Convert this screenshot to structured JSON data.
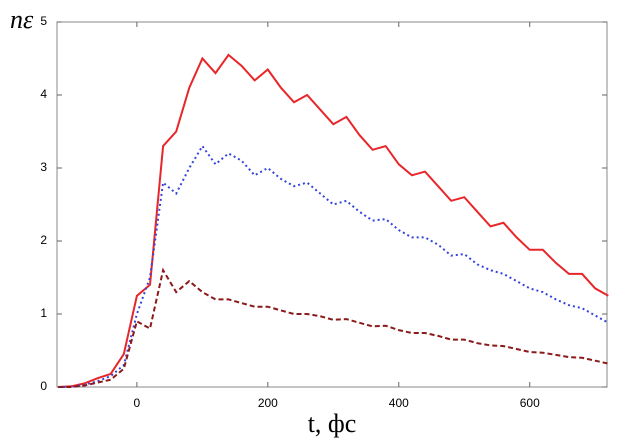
{
  "chart_data": {
    "type": "line",
    "ylabel": "nε",
    "xlabel": "t, фс",
    "x": [
      -120,
      -100,
      -80,
      -60,
      -40,
      -20,
      0,
      20,
      40,
      60,
      80,
      100,
      120,
      140,
      160,
      180,
      200,
      220,
      240,
      260,
      280,
      300,
      320,
      340,
      360,
      380,
      400,
      420,
      440,
      460,
      480,
      500,
      520,
      540,
      560,
      580,
      600,
      620,
      640,
      660,
      680,
      700,
      720
    ],
    "series": [
      {
        "color": "#e8262a",
        "dash": "solid",
        "values": [
          0,
          0.01,
          0.05,
          0.12,
          0.18,
          0.45,
          1.25,
          1.4,
          3.3,
          3.5,
          4.1,
          4.5,
          4.3,
          4.55,
          4.4,
          4.2,
          4.35,
          4.1,
          3.9,
          4.0,
          3.8,
          3.6,
          3.7,
          3.45,
          3.25,
          3.3,
          3.05,
          2.9,
          2.95,
          2.75,
          2.55,
          2.6,
          2.4,
          2.2,
          2.25,
          2.05,
          1.88,
          1.88,
          1.7,
          1.55,
          1.55,
          1.35,
          1.25
        ]
      },
      {
        "color": "#3344dd",
        "dash": "dotted",
        "values": [
          0,
          0,
          0.03,
          0.08,
          0.15,
          0.3,
          1.0,
          1.5,
          2.8,
          2.65,
          3.0,
          3.3,
          3.05,
          3.2,
          3.1,
          2.9,
          3.0,
          2.85,
          2.75,
          2.8,
          2.65,
          2.5,
          2.55,
          2.4,
          2.28,
          2.3,
          2.15,
          2.05,
          2.05,
          1.95,
          1.8,
          1.82,
          1.68,
          1.6,
          1.55,
          1.45,
          1.35,
          1.3,
          1.2,
          1.12,
          1.08,
          0.98,
          0.88
        ]
      },
      {
        "color": "#8b1a1a",
        "dash": "dashed",
        "values": [
          0,
          0,
          0.02,
          0.06,
          0.1,
          0.25,
          0.9,
          0.8,
          1.6,
          1.3,
          1.45,
          1.3,
          1.2,
          1.2,
          1.15,
          1.1,
          1.1,
          1.05,
          1.0,
          1.0,
          0.97,
          0.92,
          0.93,
          0.88,
          0.83,
          0.84,
          0.78,
          0.74,
          0.74,
          0.7,
          0.65,
          0.65,
          0.6,
          0.57,
          0.56,
          0.52,
          0.48,
          0.47,
          0.44,
          0.41,
          0.4,
          0.36,
          0.32
        ]
      }
    ],
    "xlim": [
      -122,
      718
    ],
    "xticks": [
      0,
      200,
      400,
      600
    ],
    "ylim": [
      0,
      5
    ],
    "yticks": [
      0,
      1,
      2,
      3,
      4,
      5
    ],
    "grid": false
  }
}
